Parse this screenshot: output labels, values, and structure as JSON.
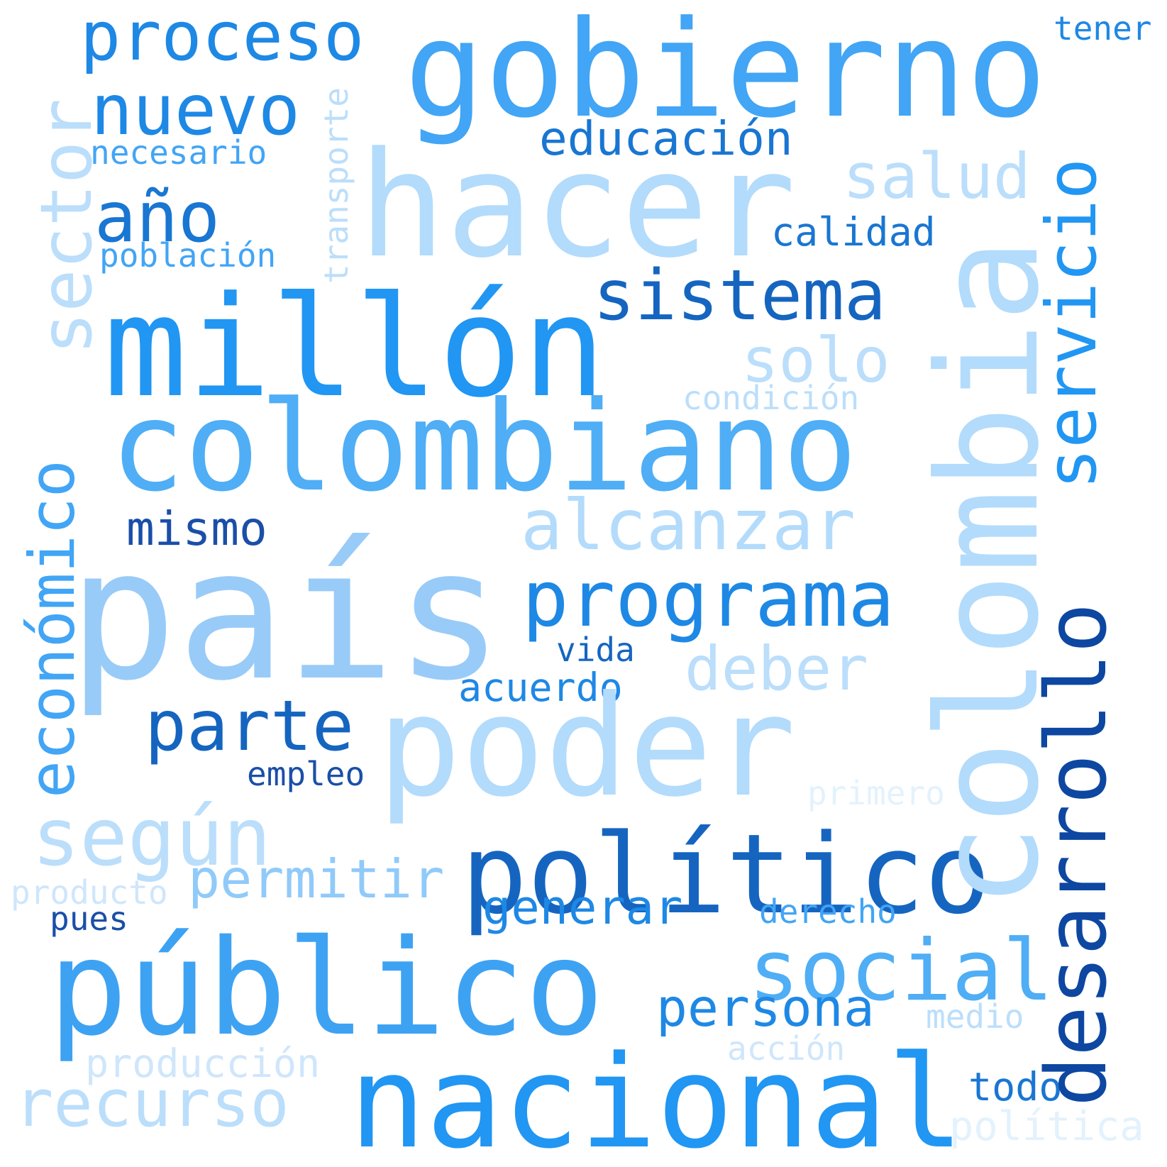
{
  "words": [
    {
      "id": "gobierno",
      "text": "gobierno",
      "color": "#42a5f5",
      "vertical": false
    },
    {
      "id": "proceso",
      "text": "proceso",
      "color": "#1e88e5",
      "vertical": false
    },
    {
      "id": "tener",
      "text": "tener",
      "color": "#1e88e5",
      "vertical": false
    },
    {
      "id": "nuevo",
      "text": "nuevo",
      "color": "#1e88e5",
      "vertical": false
    },
    {
      "id": "educacion",
      "text": "educación",
      "color": "#1976d2",
      "vertical": false
    },
    {
      "id": "necesario",
      "text": "necesario",
      "color": "#42a5f5",
      "vertical": false
    },
    {
      "id": "hacer",
      "text": "hacer",
      "color": "#b3dbfb",
      "vertical": false
    },
    {
      "id": "salud",
      "text": "salud",
      "color": "#bbdefb",
      "vertical": false
    },
    {
      "id": "ano",
      "text": "año",
      "color": "#1976d2",
      "vertical": false
    },
    {
      "id": "calidad",
      "text": "calidad",
      "color": "#1976d2",
      "vertical": false
    },
    {
      "id": "poblacion",
      "text": "población",
      "color": "#42a5f5",
      "vertical": false
    },
    {
      "id": "sistema",
      "text": "sistema",
      "color": "#1565c0",
      "vertical": false
    },
    {
      "id": "millon",
      "text": "millón",
      "color": "#2196f3",
      "vertical": false
    },
    {
      "id": "solo",
      "text": "solo",
      "color": "#bbdefb",
      "vertical": false
    },
    {
      "id": "condicion",
      "text": "condición",
      "color": "#bbdefb",
      "vertical": false
    },
    {
      "id": "colombiano",
      "text": "colombiano",
      "color": "#4faef5",
      "vertical": false
    },
    {
      "id": "alcanzar",
      "text": "alcanzar",
      "color": "#b3dbfb",
      "vertical": false
    },
    {
      "id": "mismo",
      "text": "mismo",
      "color": "#1a4fa8",
      "vertical": false
    },
    {
      "id": "pais",
      "text": "país",
      "color": "#99cbf8",
      "vertical": false
    },
    {
      "id": "programa",
      "text": "programa",
      "color": "#1e88e5",
      "vertical": false
    },
    {
      "id": "vida",
      "text": "vida",
      "color": "#1565c0",
      "vertical": false
    },
    {
      "id": "deber",
      "text": "deber",
      "color": "#bbdefb",
      "vertical": false
    },
    {
      "id": "acuerdo",
      "text": "acuerdo",
      "color": "#1e88e5",
      "vertical": false
    },
    {
      "id": "parte",
      "text": "parte",
      "color": "#1565c0",
      "vertical": false
    },
    {
      "id": "poder",
      "text": "poder",
      "color": "#b3dbfb",
      "vertical": false
    },
    {
      "id": "empleo",
      "text": "empleo",
      "color": "#1a4fa8",
      "vertical": false
    },
    {
      "id": "primero",
      "text": "primero",
      "color": "#e3f2fd",
      "vertical": false
    },
    {
      "id": "segun",
      "text": "según",
      "color": "#bbdefb",
      "vertical": false
    },
    {
      "id": "politico",
      "text": "político",
      "color": "#1565c0",
      "vertical": false
    },
    {
      "id": "permitir",
      "text": "permitir",
      "color": "#90caf9",
      "vertical": false
    },
    {
      "id": "producto",
      "text": "producto",
      "color": "#cfe6fb",
      "vertical": false
    },
    {
      "id": "generar",
      "text": "generar",
      "color": "#1e88e5",
      "vertical": false
    },
    {
      "id": "derecho",
      "text": "derecho",
      "color": "#42a5f5",
      "vertical": false
    },
    {
      "id": "pues",
      "text": "pues",
      "color": "#1a4fa8",
      "vertical": false
    },
    {
      "id": "social",
      "text": "social",
      "color": "#4faef5",
      "vertical": false
    },
    {
      "id": "publico",
      "text": "público",
      "color": "#3ea2f3",
      "vertical": false
    },
    {
      "id": "persona",
      "text": "persona",
      "color": "#1e88e5",
      "vertical": false
    },
    {
      "id": "medio",
      "text": "medio",
      "color": "#bbdefb",
      "vertical": false
    },
    {
      "id": "accion",
      "text": "acción",
      "color": "#cfe6fb",
      "vertical": false
    },
    {
      "id": "produccion",
      "text": "producción",
      "color": "#cfe6fb",
      "vertical": false
    },
    {
      "id": "nacional",
      "text": "nacional",
      "color": "#2196f3",
      "vertical": false
    },
    {
      "id": "todo",
      "text": "todo",
      "color": "#1976d2",
      "vertical": false
    },
    {
      "id": "recurso",
      "text": "recurso",
      "color": "#bbdefb",
      "vertical": false
    },
    {
      "id": "politica",
      "text": "política",
      "color": "#e3f2fd",
      "vertical": false
    },
    {
      "id": "sector",
      "text": "sector",
      "color": "#bbdefb",
      "vertical": true
    },
    {
      "id": "transporte",
      "text": "transporte",
      "color": "#bbdefb",
      "vertical": true
    },
    {
      "id": "economico",
      "text": "económico",
      "color": "#42a5f5",
      "vertical": true
    },
    {
      "id": "colombia",
      "text": "colombia",
      "color": "#b3dbfb",
      "vertical": true
    },
    {
      "id": "servicio",
      "text": "servicio",
      "color": "#2196f3",
      "vertical": true
    },
    {
      "id": "desarrollo",
      "text": "desarrollo",
      "color": "#0d47a1",
      "vertical": true
    }
  ]
}
